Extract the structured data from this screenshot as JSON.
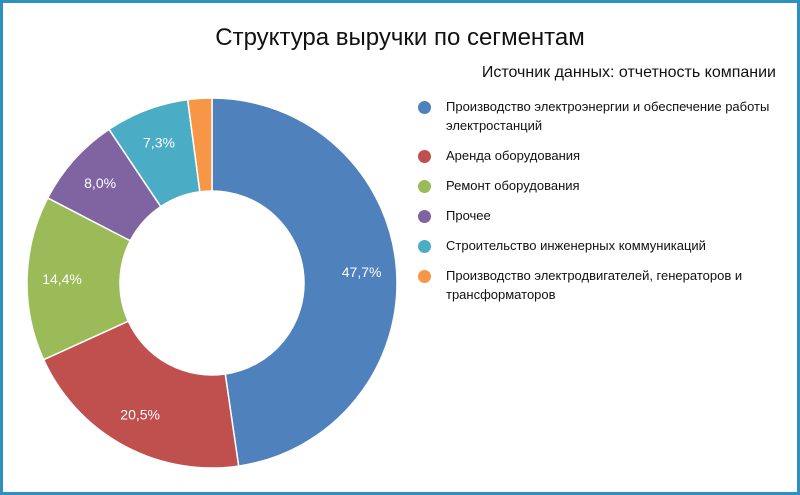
{
  "title": "Структура выручки по сегментам",
  "subtitle": "Источник данных: отчетность компании",
  "chart_data": {
    "type": "pie",
    "style": "donut",
    "title": "Структура выручки по сегментам",
    "legend_position": "right",
    "categories": [
      "Производство электроэнергии и обеспечение работы электростанций",
      "Аренда оборудования",
      "Ремонт оборудования",
      "Прочее",
      "Строительство инженерных коммуникаций",
      "Производство электродвигателей, генераторов и трансформаторов"
    ],
    "values": [
      47.7,
      20.5,
      14.4,
      8.0,
      7.3,
      2.1
    ],
    "labels": [
      "47,7%",
      "20,5%",
      "14,4%",
      "8,0%",
      "7,3%",
      ""
    ],
    "colors": [
      "#4f81bd",
      "#c0504d",
      "#9bbb59",
      "#8064a2",
      "#4bacc6",
      "#f79646"
    ]
  }
}
